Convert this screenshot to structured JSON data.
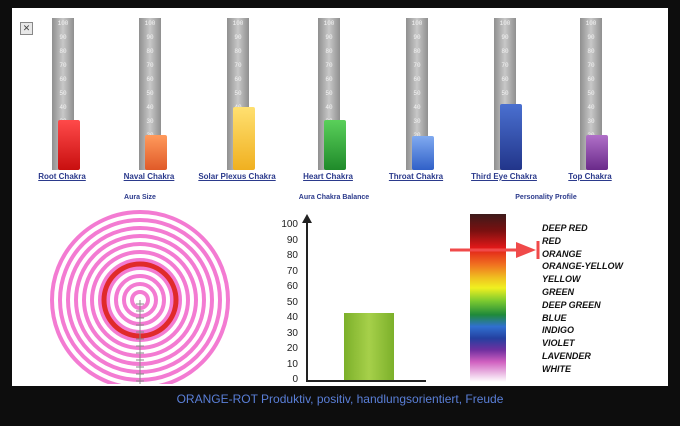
{
  "close_label": "✕",
  "chakras": {
    "ticks": [
      "100",
      "90",
      "80",
      "70",
      "60",
      "50",
      "40",
      "30",
      "20",
      "10",
      "0"
    ],
    "items": [
      {
        "label": "Root Chakra",
        "value": 36,
        "color_top": "#ff4a4a",
        "color_bottom": "#c80f0f"
      },
      {
        "label": "Naval Chakra",
        "value": 25,
        "color_top": "#ff9a5c",
        "color_bottom": "#e05a28"
      },
      {
        "label": "Solar Plexus Chakra",
        "value": 45,
        "color_top": "#ffe070",
        "color_bottom": "#f0b020"
      },
      {
        "label": "Heart Chakra",
        "value": 36,
        "color_top": "#5ad05a",
        "color_bottom": "#1f8a2a"
      },
      {
        "label": "Throat Chakra",
        "value": 24,
        "color_top": "#80aaf0",
        "color_bottom": "#3060c8"
      },
      {
        "label": "Third Eye Chakra",
        "value": 47,
        "color_top": "#4a70d0",
        "color_bottom": "#22358a"
      },
      {
        "label": "Top Chakra",
        "value": 25,
        "color_top": "#b070c8",
        "color_bottom": "#6a2a8a"
      }
    ]
  },
  "aura_size": {
    "title": "Aura Size"
  },
  "aura_balance": {
    "title": "Aura Chakra Balance",
    "ticks": [
      "100",
      "90",
      "80",
      "70",
      "60",
      "50",
      "40",
      "30",
      "20",
      "10",
      "0"
    ],
    "value": 43
  },
  "personality": {
    "title": "Personality Profile",
    "items": [
      "DEEP RED",
      "RED",
      "ORANGE",
      "ORANGE-YELLOW",
      "YELLOW",
      "GREEN",
      "DEEP GREEN",
      "BLUE",
      "INDIGO",
      "VIOLET",
      "LAVENDER",
      "WHITE"
    ],
    "selected": "RED",
    "pointer_color": "#f04a4a"
  },
  "caption": "ORANGE-ROT  Produktiv, positiv, handlungsorientiert, Freude"
}
